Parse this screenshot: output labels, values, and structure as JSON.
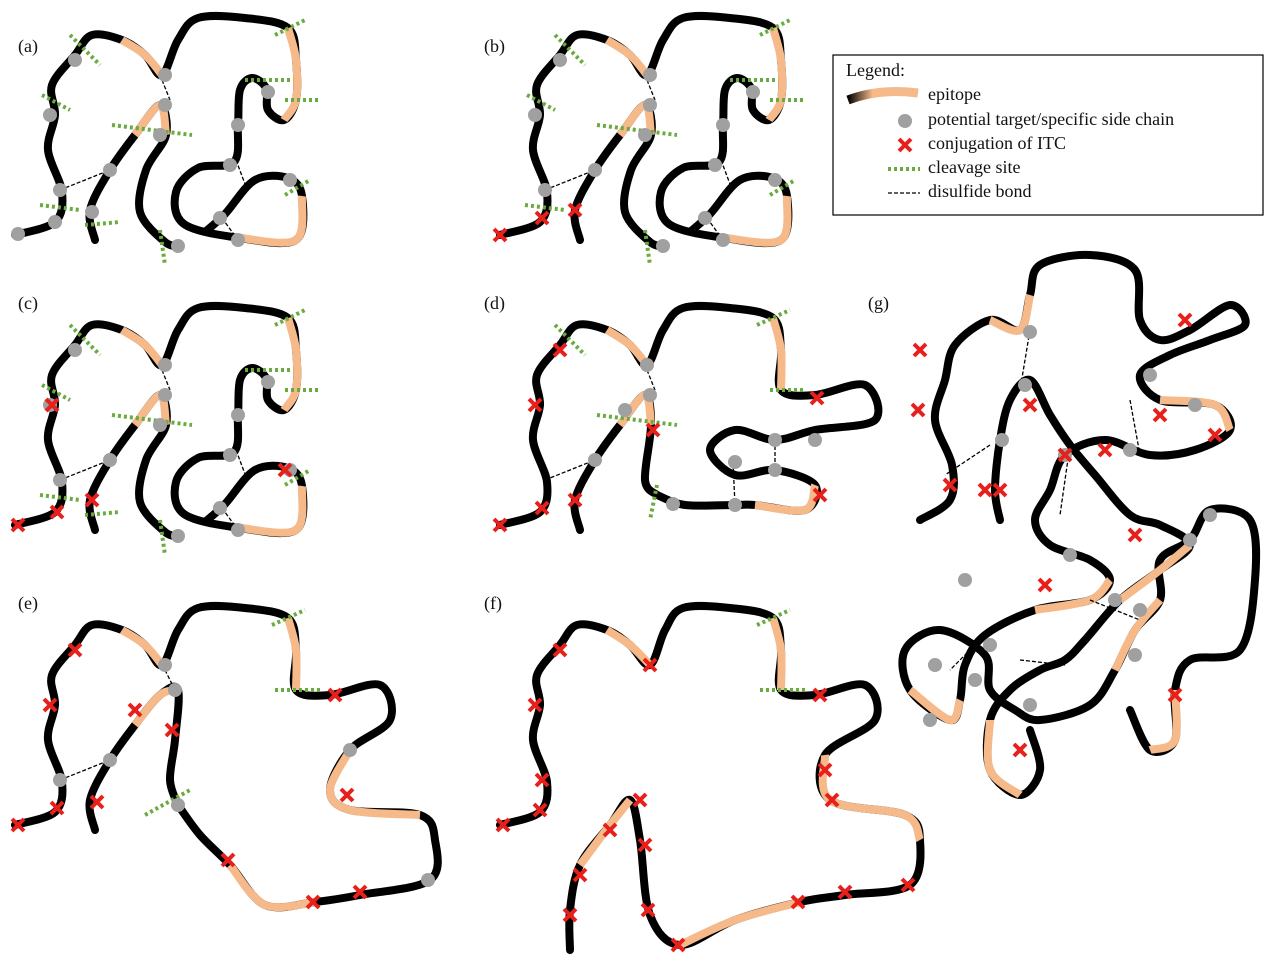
{
  "panels": [
    "(a)",
    "(b)",
    "(c)",
    "(d)",
    "(e)",
    "(f)",
    "(g)"
  ],
  "legend": {
    "title": "Legend:",
    "items": [
      "epitope",
      "potential target/specific side chain",
      "conjugation of ITC",
      "cleavage site",
      "disulfide bond"
    ]
  }
}
